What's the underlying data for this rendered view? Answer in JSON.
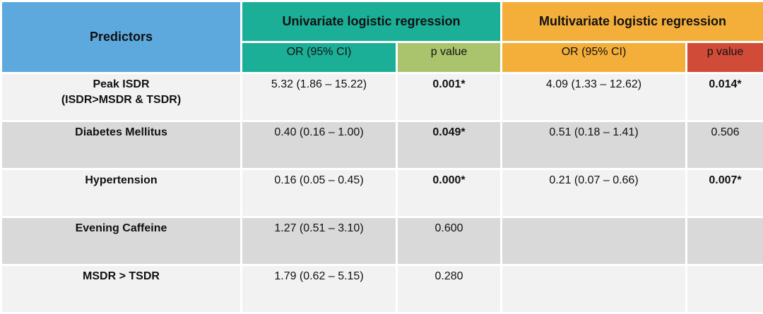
{
  "header": {
    "predictors": "Predictors",
    "univariate": "Univariate logistic regression",
    "multivariate": "Multivariate logistic regression",
    "or_ci": "OR (95% CI)",
    "p_value": "p value"
  },
  "colors": {
    "predictors": "#5DA9DD",
    "univariate": "#1BAF97",
    "univariate_p": "#A9C46C",
    "multivariate": "#F4AF3B",
    "multivariate_p": "#D04B38",
    "row_light": "#F2F2F2",
    "row_dark": "#D9D9D9"
  },
  "rows": [
    {
      "predictor": "Peak ISDR",
      "predictor_sub": "(ISDR>MSDR & TSDR)",
      "uni_or": "5.32 (1.86 – 15.22)",
      "uni_p": "0.001*",
      "uni_sig": true,
      "multi_or": "4.09 (1.33 – 12.62)",
      "multi_p": "0.014*",
      "multi_sig": true
    },
    {
      "predictor": "Diabetes Mellitus",
      "uni_or": "0.40 (0.16 – 1.00)",
      "uni_p": "0.049*",
      "uni_sig": true,
      "multi_or": "0.51 (0.18 – 1.41)",
      "multi_p": "0.506",
      "multi_sig": false
    },
    {
      "predictor": "Hypertension",
      "uni_or": "0.16 (0.05 – 0.45)",
      "uni_p": "0.000*",
      "uni_sig": true,
      "multi_or": "0.21 (0.07 – 0.66)",
      "multi_p": "0.007*",
      "multi_sig": true
    },
    {
      "predictor": "Evening Caffeine",
      "uni_or": "1.27 (0.51 – 3.10)",
      "uni_p": "0.600",
      "uni_sig": false,
      "multi_or": "",
      "multi_p": ""
    },
    {
      "predictor": "MSDR > TSDR",
      "uni_or": "1.79 (0.62 – 5.15)",
      "uni_p": "0.280",
      "uni_sig": false,
      "multi_or": "",
      "multi_p": ""
    }
  ]
}
